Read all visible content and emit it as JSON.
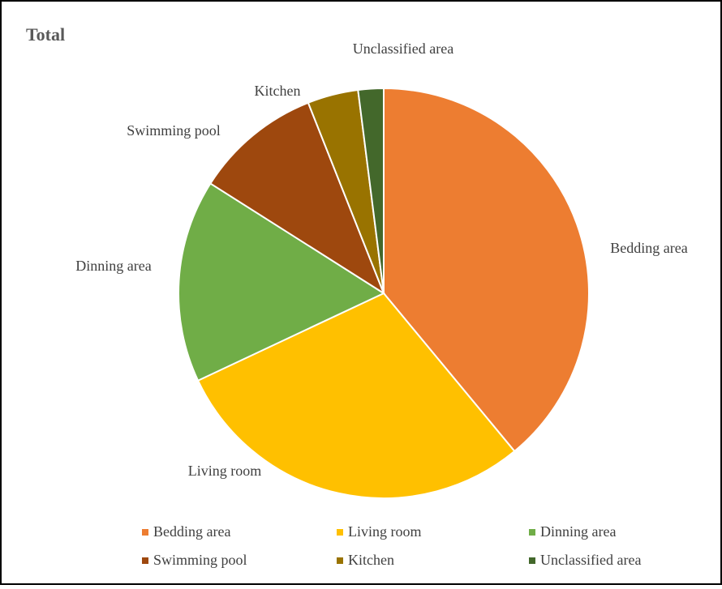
{
  "chart_data": {
    "type": "pie",
    "title": "Total",
    "categories": [
      "Bedding area",
      "Living room",
      "Dinning area",
      "Swimming pool",
      "Kitchen",
      "Unclassified area"
    ],
    "values": [
      39,
      29,
      16,
      10,
      4,
      2
    ],
    "colors": [
      "#ed7d31",
      "#ffc000",
      "#70ad47",
      "#9e480e",
      "#997300",
      "#43682b"
    ],
    "legend": "bottom"
  }
}
